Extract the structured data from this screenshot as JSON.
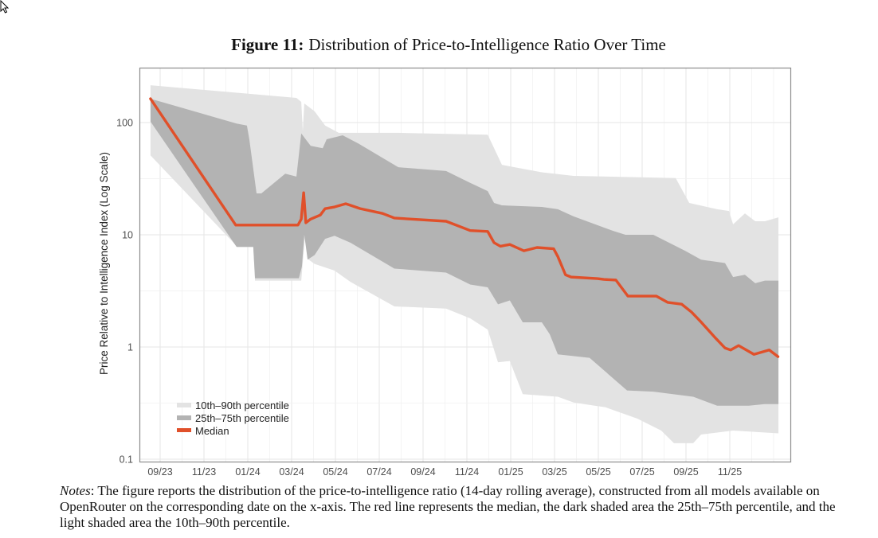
{
  "figure": {
    "label": "Figure 11:",
    "title": "Distribution of Price-to-Intelligence Ratio Over Time"
  },
  "notes": {
    "label": "Notes",
    "text": ": The figure reports the distribution of the price-to-intelligence ratio (14-day rolling average), constructed from all models available on OpenRouter on the corresponding date on the x-axis. The red line represents the median, the dark shaded area the 25th–75th percentile, and the light shaded area the 10th–90th percentile."
  },
  "chart_data": {
    "type": "area",
    "title": "Distribution of Price-to-Intelligence Ratio Over Time",
    "xlabel": "",
    "ylabel": "Price Relative to Intelligence Index (Log Scale)",
    "y_scale": "log",
    "ylim": [
      0.1,
      300
    ],
    "y_ticks": [
      0.1,
      1,
      10,
      100
    ],
    "y_tick_labels": [
      "0.1",
      "1",
      "10",
      "100"
    ],
    "x_tick_labels": [
      "09/23",
      "11/23",
      "01/24",
      "03/24",
      "05/24",
      "07/24",
      "09/24",
      "11/24",
      "01/25",
      "03/25",
      "05/25",
      "07/25",
      "09/25",
      "11/25"
    ],
    "x_ticks_month_index": [
      0,
      2,
      4,
      6,
      8,
      10,
      12,
      14,
      16,
      18,
      20,
      22,
      24,
      26
    ],
    "xlim_month_index": [
      -0.9,
      28.7
    ],
    "grid": true,
    "legend_position": "bottom-left",
    "colors": {
      "p10_90": "#e3e3e3",
      "p25_75": "#b3b3b3",
      "median": "#e0502a"
    },
    "series": [
      {
        "name": "10th–90th percentile",
        "kind": "band",
        "upper": [
          [
            -0.44,
            215
          ],
          [
            6.22,
            166
          ],
          [
            6.44,
            153
          ],
          [
            6.51,
            84
          ],
          [
            6.58,
            148
          ],
          [
            7.05,
            126
          ],
          [
            7.53,
            94
          ],
          [
            8.15,
            81
          ],
          [
            10.87,
            81
          ],
          [
            14.95,
            78
          ],
          [
            15.6,
            42
          ],
          [
            17.42,
            36
          ],
          [
            18.87,
            33.5
          ],
          [
            23.53,
            32
          ],
          [
            24.15,
            19.2
          ],
          [
            25.42,
            16.9
          ],
          [
            25.96,
            16.3
          ],
          [
            26.15,
            12.4
          ],
          [
            26.69,
            15.5
          ],
          [
            27.16,
            13.2
          ],
          [
            27.6,
            13.2
          ],
          [
            28.22,
            14.3
          ]
        ],
        "lower": [
          [
            -0.44,
            51
          ],
          [
            3.53,
            7.8
          ],
          [
            4.25,
            7.8
          ],
          [
            4.33,
            3.9
          ],
          [
            6.44,
            3.9
          ],
          [
            6.62,
            10.3
          ],
          [
            6.73,
            6.1
          ],
          [
            7.05,
            5.5
          ],
          [
            7.96,
            4.8
          ],
          [
            8.69,
            3.8
          ],
          [
            10.69,
            2.3
          ],
          [
            13.05,
            2.2
          ],
          [
            14.15,
            1.8
          ],
          [
            14.95,
            1.43
          ],
          [
            15.42,
            0.73
          ],
          [
            15.96,
            0.75
          ],
          [
            16.55,
            0.38
          ],
          [
            18.15,
            0.36
          ],
          [
            18.87,
            0.32
          ],
          [
            20.33,
            0.29
          ],
          [
            21.78,
            0.23
          ],
          [
            22.87,
            0.18
          ],
          [
            23.45,
            0.139
          ],
          [
            24.33,
            0.139
          ],
          [
            24.69,
            0.166
          ],
          [
            26.15,
            0.18
          ],
          [
            28.22,
            0.17
          ]
        ]
      },
      {
        "name": "25th–75th percentile",
        "kind": "band",
        "upper": [
          [
            -0.44,
            163
          ],
          [
            3.49,
            98
          ],
          [
            3.96,
            94
          ],
          [
            4.07,
            71
          ],
          [
            4.4,
            23.4
          ],
          [
            4.62,
            23.4
          ],
          [
            5.71,
            35
          ],
          [
            6.22,
            33
          ],
          [
            6.44,
            80
          ],
          [
            6.87,
            62
          ],
          [
            7.42,
            59
          ],
          [
            7.6,
            71
          ],
          [
            8.33,
            77
          ],
          [
            9.05,
            65
          ],
          [
            10.87,
            40
          ],
          [
            13.05,
            37
          ],
          [
            14.15,
            29
          ],
          [
            14.95,
            24.5
          ],
          [
            15.24,
            19.2
          ],
          [
            15.6,
            18.3
          ],
          [
            17.42,
            17.7
          ],
          [
            18.15,
            16.9
          ],
          [
            18.87,
            14.6
          ],
          [
            20.69,
            10.8
          ],
          [
            21.24,
            10.0
          ],
          [
            22.51,
            10.0
          ],
          [
            23.96,
            7.2
          ],
          [
            24.69,
            6.0
          ],
          [
            25.78,
            5.6
          ],
          [
            26.15,
            4.2
          ],
          [
            26.69,
            4.4
          ],
          [
            27.16,
            3.7
          ],
          [
            27.6,
            3.9
          ],
          [
            28.22,
            3.9
          ]
        ],
        "lower": [
          [
            -0.44,
            102
          ],
          [
            3.49,
            7.8
          ],
          [
            4.25,
            7.8
          ],
          [
            4.33,
            4.1
          ],
          [
            6.33,
            4.1
          ],
          [
            6.47,
            5.2
          ],
          [
            6.58,
            10.0
          ],
          [
            6.73,
            6.0
          ],
          [
            7.05,
            6.6
          ],
          [
            7.53,
            9.2
          ],
          [
            7.96,
            9.8
          ],
          [
            8.69,
            8.5
          ],
          [
            9.42,
            7.0
          ],
          [
            10.69,
            5.0
          ],
          [
            13.05,
            4.6
          ],
          [
            14.15,
            3.6
          ],
          [
            14.95,
            3.4
          ],
          [
            15.42,
            2.4
          ],
          [
            15.96,
            2.6
          ],
          [
            16.55,
            1.66
          ],
          [
            17.42,
            1.66
          ],
          [
            17.78,
            1.3
          ],
          [
            18.15,
            0.86
          ],
          [
            19.6,
            0.8
          ],
          [
            21.31,
            0.41
          ],
          [
            22.51,
            0.4
          ],
          [
            24.33,
            0.36
          ],
          [
            25.42,
            0.3
          ],
          [
            26.87,
            0.3
          ],
          [
            27.6,
            0.31
          ],
          [
            28.22,
            0.31
          ]
        ]
      },
      {
        "name": "Median",
        "kind": "line",
        "points": [
          [
            -0.44,
            163
          ],
          [
            3.45,
            12.2
          ],
          [
            6.29,
            12.2
          ],
          [
            6.44,
            13.8
          ],
          [
            6.55,
            23.7
          ],
          [
            6.65,
            12.8
          ],
          [
            6.87,
            13.8
          ],
          [
            7.31,
            15.0
          ],
          [
            7.53,
            17.1
          ],
          [
            7.96,
            17.7
          ],
          [
            8.47,
            18.9
          ],
          [
            8.69,
            18.3
          ],
          [
            9.13,
            17.1
          ],
          [
            10.15,
            15.5
          ],
          [
            10.69,
            14.1
          ],
          [
            13.05,
            13.2
          ],
          [
            13.6,
            12.0
          ],
          [
            14.15,
            10.9
          ],
          [
            14.95,
            10.7
          ],
          [
            15.24,
            8.5
          ],
          [
            15.53,
            7.9
          ],
          [
            15.96,
            8.2
          ],
          [
            16.6,
            7.2
          ],
          [
            17.2,
            7.7
          ],
          [
            17.96,
            7.5
          ],
          [
            18.15,
            6.4
          ],
          [
            18.5,
            4.4
          ],
          [
            18.76,
            4.2
          ],
          [
            19.96,
            4.07
          ],
          [
            20.25,
            4.0
          ],
          [
            20.8,
            3.95
          ],
          [
            21.35,
            2.84
          ],
          [
            22.65,
            2.84
          ],
          [
            23.16,
            2.5
          ],
          [
            23.8,
            2.41
          ],
          [
            24.25,
            2.05
          ],
          [
            24.7,
            1.66
          ],
          [
            25.35,
            1.2
          ],
          [
            25.78,
            0.98
          ],
          [
            26.04,
            0.94
          ],
          [
            26.4,
            1.03
          ],
          [
            27.1,
            0.86
          ],
          [
            27.8,
            0.94
          ],
          [
            28.2,
            0.82
          ]
        ]
      }
    ]
  }
}
